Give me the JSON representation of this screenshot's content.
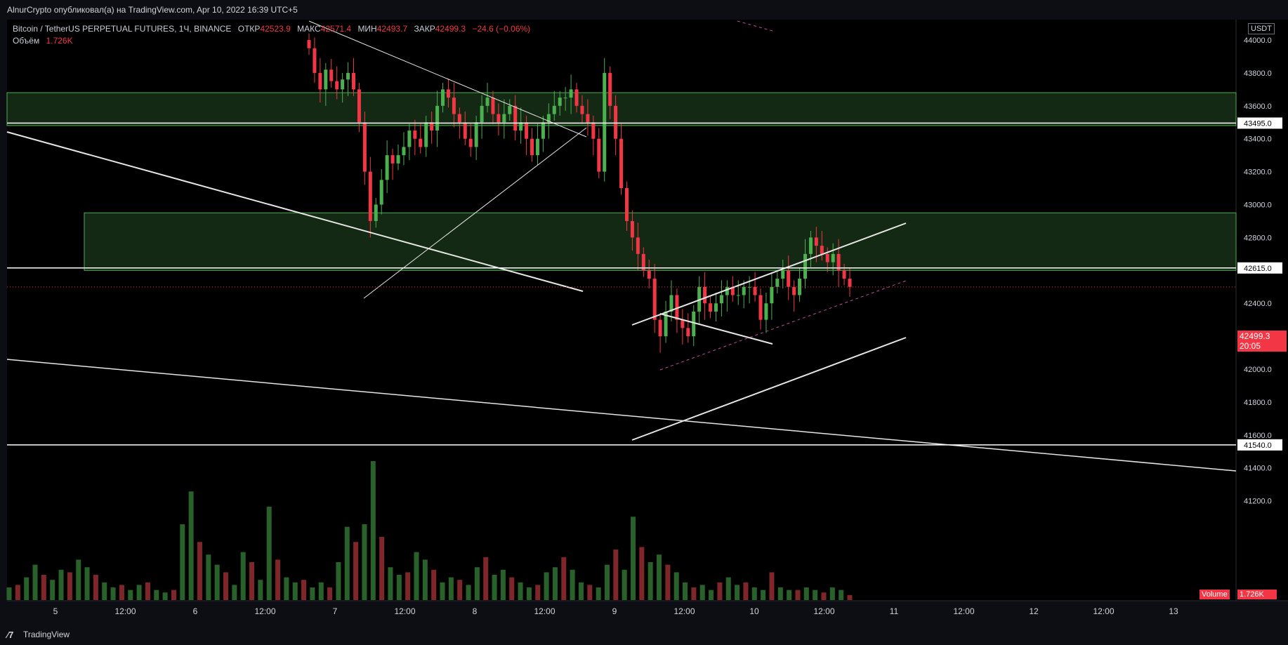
{
  "header": {
    "published": "AlnurCrypto опубликовал(а) на TradingView.com, Apr 10, 2022 16:39 UTC+5"
  },
  "legend": {
    "symbol": "Bitcoin / TetherUS PERPETUAL FUTURES, 1Ч, BINANCE",
    "open_label": "ОТКР",
    "open": "42523.9",
    "high_label": "МАКС",
    "high": "42571.4",
    "low_label": "МИН",
    "low": "42493.7",
    "close_label": "ЗАКР",
    "close": "42499.3",
    "change": "−24.6 (−0.06%)",
    "volume_label": "Объём",
    "volume": "1.726K"
  },
  "price_axis": {
    "currency": "USDT",
    "marker_43495": "43495.0",
    "marker_42615": "42615.0",
    "marker_41540": "41540.0",
    "last_price": "42499.3",
    "countdown": "20:05",
    "volume_tag": "Volume",
    "volume_tag_value": "1.726K"
  },
  "brand": {
    "name": "TradingView"
  },
  "colors": {
    "up": "#4caf50",
    "down": "#f23645",
    "zone": "#1b3a1b"
  },
  "chart_data": {
    "type": "candlestick",
    "yticks": [
      "44000.0",
      "43800.0",
      "43600.0",
      "43400.0",
      "43200.0",
      "43000.0",
      "42800.0",
      "42400.0",
      "42200.0",
      "42000.0",
      "41800.0",
      "41600.0",
      "41400.0",
      "41200.0"
    ],
    "xticks": [
      "5",
      "12:00",
      "6",
      "12:00",
      "7",
      "12:00",
      "8",
      "12:00",
      "9",
      "12:00",
      "10",
      "12:00",
      "11",
      "12:00",
      "12",
      "12:00",
      "13"
    ],
    "horizontal_levels": [
      43495.0,
      42615.0,
      41540.0
    ],
    "last_price": 42499.3,
    "support_zones": [
      [
        43480,
        43680
      ],
      [
        42600,
        42950
      ]
    ],
    "candles_close": [
      43950,
      43800,
      43700,
      43820,
      43750,
      43700,
      43760,
      43800,
      43700,
      43500,
      43200,
      42900,
      43000,
      43150,
      43300,
      43250,
      43300,
      43350,
      43450,
      43400,
      43350,
      43500,
      43450,
      43600,
      43700,
      43650,
      43550,
      43500,
      43400,
      43350,
      43500,
      43600,
      43650,
      43550,
      43500,
      43550,
      43600,
      43450,
      43500,
      43400,
      43300,
      43400,
      43500,
      43550,
      43600,
      43650,
      43650,
      43700,
      43600,
      43550,
      43500,
      43400,
      43200,
      43800,
      43600,
      43400,
      43100,
      42900,
      42800,
      42700,
      42600,
      42550,
      42300,
      42200,
      42350,
      42450,
      42300,
      42250,
      42200,
      42350,
      42500,
      42400,
      42350,
      42400,
      42450,
      42500,
      42450,
      42450,
      42500,
      42500,
      42450,
      42300,
      42400,
      42500,
      42550,
      42600,
      42500,
      42450,
      42550,
      42700,
      42800,
      42750,
      42700,
      42650,
      42700,
      42600,
      42550,
      42500
    ],
    "volumes": [
      0.5,
      0.6,
      0.9,
      1.4,
      1.0,
      0.8,
      1.2,
      1.1,
      1.6,
      1.3,
      1.0,
      0.7,
      0.5,
      0.6,
      0.4,
      0.6,
      0.7,
      0.4,
      0.3,
      0.4,
      3.0,
      4.3,
      2.3,
      1.8,
      1.4,
      1.1,
      0.6,
      1.9,
      1.5,
      0.8,
      3.7,
      1.6,
      0.9,
      0.7,
      0.8,
      0.5,
      0.7,
      0.5,
      1.5,
      2.9,
      2.3,
      3.0,
      5.5,
      2.5,
      1.3,
      1.0,
      1.1,
      1.9,
      1.6,
      1.2,
      0.7,
      0.9,
      0.8,
      0.6,
      1.3,
      1.7,
      1.0,
      1.2,
      0.9,
      0.7,
      0.5,
      0.6,
      1.1,
      1.3,
      1.7,
      1.2,
      0.7,
      0.6,
      0.5,
      1.4,
      2.0,
      1.2,
      3.3,
      2.1,
      1.5,
      1.8,
      1.4,
      1.1,
      0.7,
      0.5,
      0.6,
      0.4,
      0.7,
      0.9,
      0.6,
      0.7,
      0.5,
      0.4,
      1.1,
      0.5,
      0.4,
      0.4,
      0.5,
      0.4,
      0.3,
      0.5,
      0.4,
      0.2
    ]
  }
}
